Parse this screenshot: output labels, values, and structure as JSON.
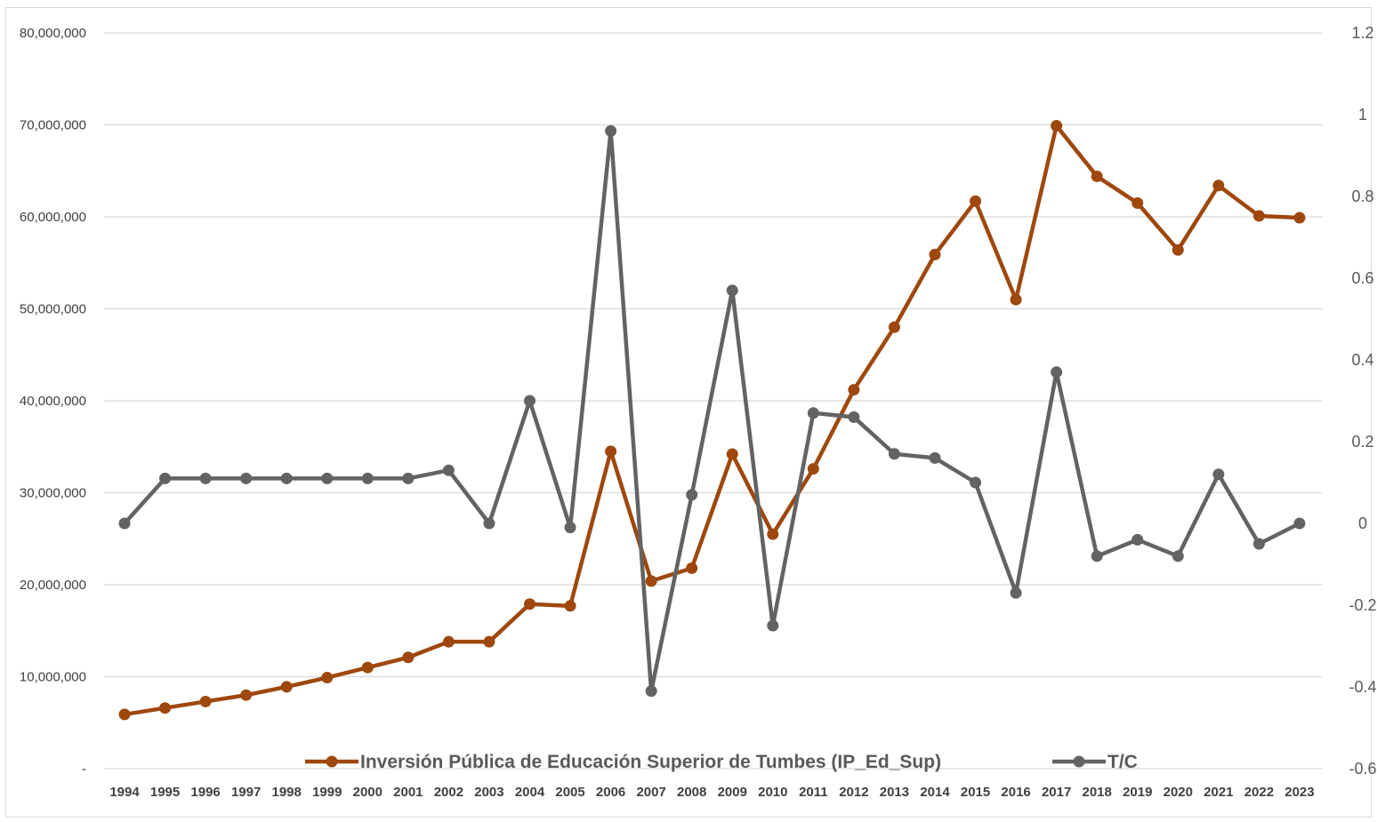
{
  "chart_data": {
    "type": "line",
    "title": "",
    "categories": [
      "1994",
      "1995",
      "1996",
      "1997",
      "1998",
      "1999",
      "2000",
      "2001",
      "2002",
      "2003",
      "2004",
      "2005",
      "2006",
      "2007",
      "2008",
      "2009",
      "2010",
      "2011",
      "2012",
      "2013",
      "2014",
      "2015",
      "2016",
      "2017",
      "2018",
      "2019",
      "2020",
      "2021",
      "2022",
      "2023"
    ],
    "series": [
      {
        "name": "Inversión Pública de Educación Superior de Tumbes (IP_Ed_Sup)",
        "axis": "left",
        "color": "#9e480e",
        "values": [
          5900000,
          6600000,
          7300000,
          8000000,
          8900000,
          9900000,
          11000000,
          12100000,
          13800000,
          13800000,
          17900000,
          17700000,
          34500000,
          20400000,
          21800000,
          34200000,
          25500000,
          32600000,
          41200000,
          48000000,
          55900000,
          61700000,
          51000000,
          69900000,
          64400000,
          61500000,
          56400000,
          63400000,
          60100000,
          59900000
        ]
      },
      {
        "name": "T/C",
        "axis": "right",
        "color": "#636363",
        "values": [
          0.0,
          0.11,
          0.11,
          0.11,
          0.11,
          0.11,
          0.11,
          0.11,
          0.13,
          0.0,
          0.3,
          -0.01,
          0.96,
          -0.41,
          0.07,
          0.57,
          -0.25,
          0.27,
          0.26,
          0.17,
          0.16,
          0.1,
          -0.17,
          0.37,
          -0.08,
          -0.04,
          -0.08,
          0.12,
          -0.05,
          0.0
        ]
      }
    ],
    "y_left": {
      "ylim": [
        0,
        80000000
      ],
      "ticks": [
        "-",
        "10,000,000",
        "20,000,000",
        "30,000,000",
        "40,000,000",
        "50,000,000",
        "60,000,000",
        "70,000,000",
        "80,000,000"
      ]
    },
    "y_right": {
      "ylim": [
        -0.6,
        1.2
      ],
      "ticks": [
        "-0.6",
        "-0.4",
        "-0.2",
        "0",
        "0.2",
        "0.4",
        "0.6",
        "0.8",
        "1",
        "1.2"
      ]
    },
    "grid": true,
    "legend_position": "bottom-center"
  }
}
